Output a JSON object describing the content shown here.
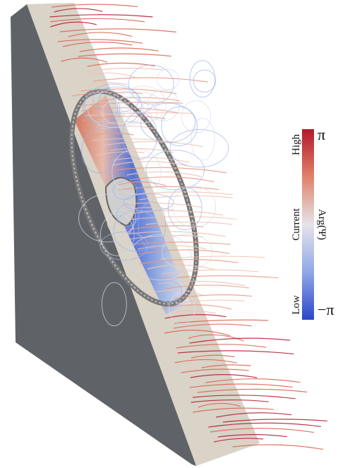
{
  "colorbar": {
    "left_labels": [
      "High",
      "Current",
      "Low"
    ],
    "top_label": "π",
    "bottom_label": "−π",
    "quantity": "Arg(Ψ)"
  }
}
